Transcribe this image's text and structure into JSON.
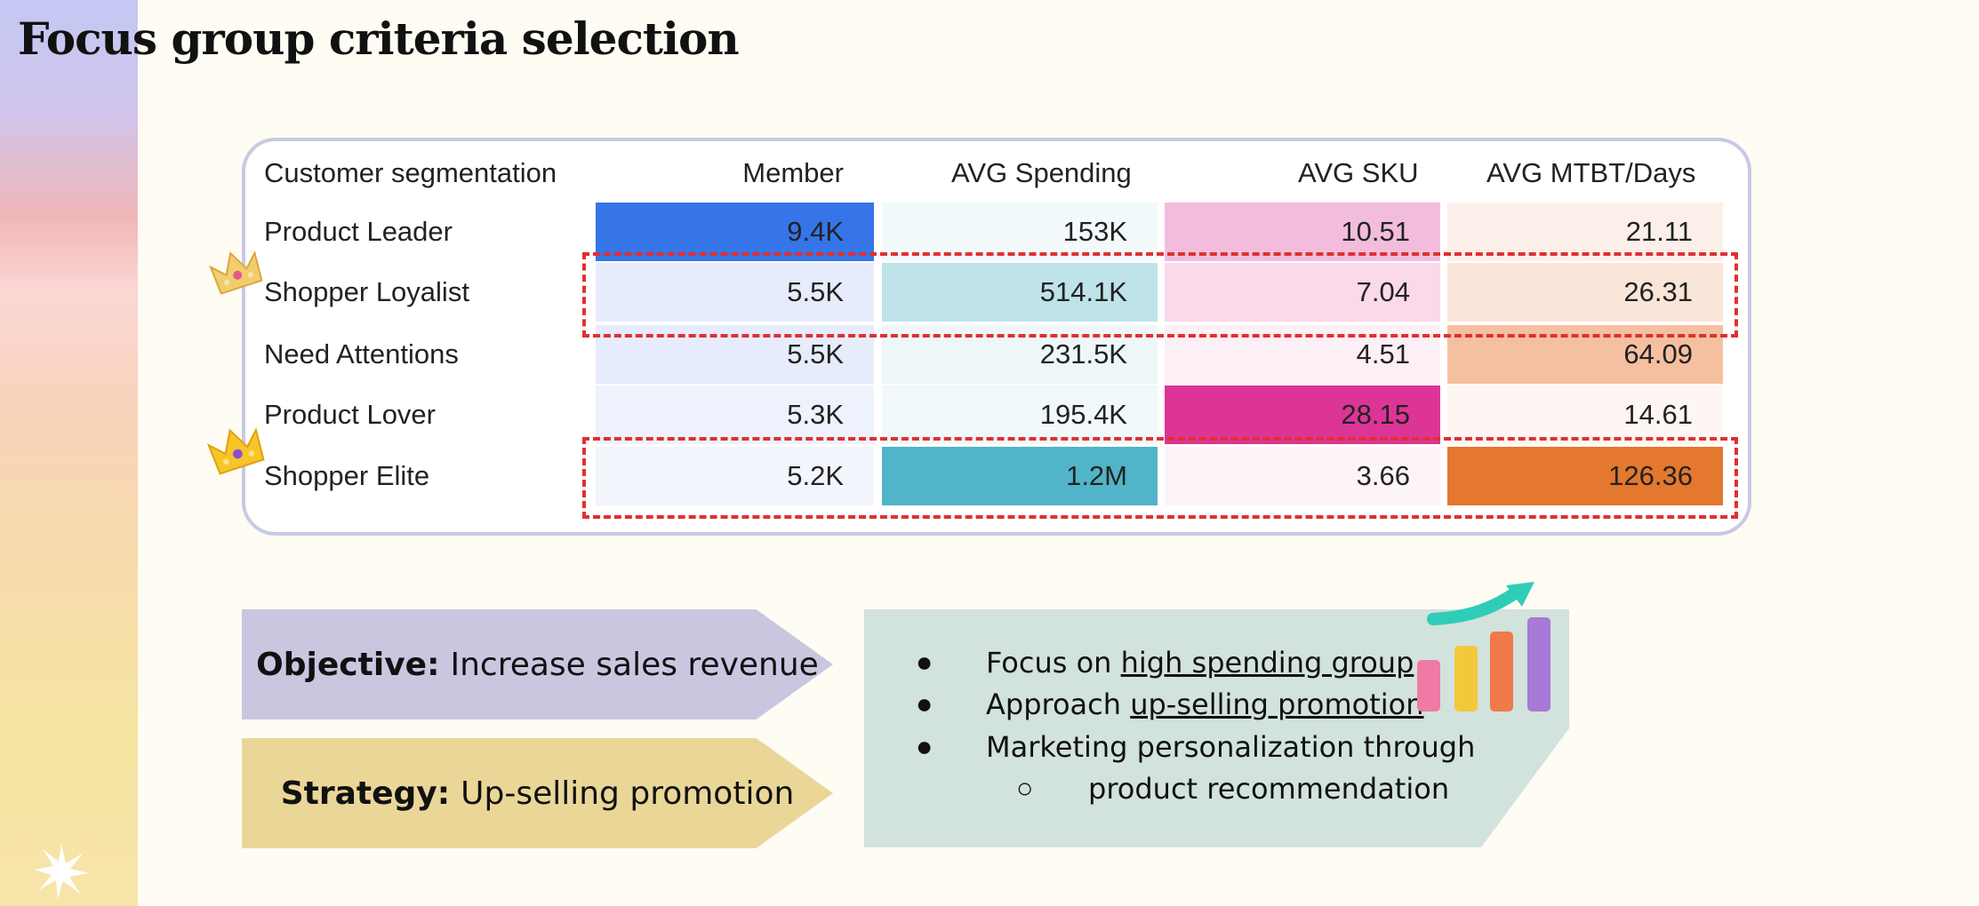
{
  "title": "Focus group criteria selection",
  "table": {
    "headers": [
      "Customer segmentation",
      "Member",
      "AVG Spending",
      "AVG SKU",
      "AVG MTBT/Days"
    ],
    "rows": [
      {
        "segment": "Product Leader",
        "member": "9.4K",
        "spending": "153K",
        "sku": "10.51",
        "mtbt": "21.11"
      },
      {
        "segment": "Shopper Loyalist",
        "member": "5.5K",
        "spending": "514.1K",
        "sku": "7.04",
        "mtbt": "26.31"
      },
      {
        "segment": "Need Attentions",
        "member": "5.5K",
        "spending": "231.5K",
        "sku": "4.51",
        "mtbt": "64.09"
      },
      {
        "segment": "Product Lover",
        "member": "5.3K",
        "spending": "195.4K",
        "sku": "28.15",
        "mtbt": "14.61"
      },
      {
        "segment": "Shopper Elite",
        "member": "5.2K",
        "spending": "1.2M",
        "sku": "3.66",
        "mtbt": "126.36"
      }
    ],
    "cell_colors": {
      "member": [
        "#3575e8",
        "#e6ecfb",
        "#e6ecfb",
        "#eef2fc",
        "#f3f5fd"
      ],
      "spending": [
        "#f3fafc",
        "#bee3e8",
        "#eef7f8",
        "#f1f8fa",
        "#52b4c8"
      ],
      "sku": [
        "#f2bddd",
        "#fad9ea",
        "#fcf0f6",
        "#dc3597",
        "#fdf4f9"
      ],
      "mtbt": [
        "#fcefea",
        "#fae6d8",
        "#f4c0a0",
        "#fdf6f2",
        "#e4782f"
      ]
    }
  },
  "objective": {
    "label": "Objective:",
    "text": "Increase sales revenue",
    "color": "#c9c7e0"
  },
  "strategy": {
    "label": "Strategy:",
    "text": "Up-selling promotion",
    "color": "#ead798"
  },
  "bullets": {
    "b1_prefix": "Focus on ",
    "b1_link": "high spending group",
    "b2_prefix": "Approach ",
    "b2_link": "up-selling promotion",
    "b3": "Marketing personalization through",
    "b3_sub": "product recommendation",
    "bullet_glyph": "●",
    "sub_glyph": "○"
  },
  "icons": [
    "crown-icon",
    "growth-chart-icon",
    "sparkle-icon"
  ]
}
